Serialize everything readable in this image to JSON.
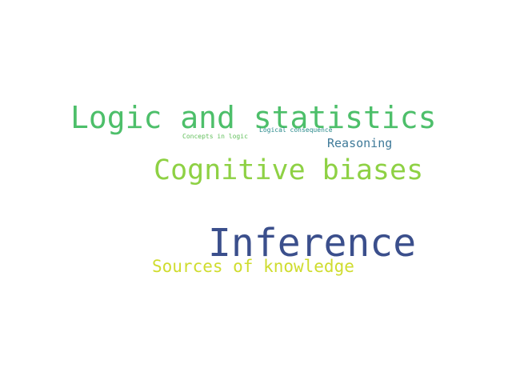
{
  "word_cloud": {
    "words": [
      {
        "key": "logic",
        "text": "Logic and statistics",
        "color": "#4dbf6a"
      },
      {
        "key": "cogbias",
        "text": "Cognitive biases",
        "color": "#8ed144"
      },
      {
        "key": "inference",
        "text": "Inference",
        "color": "#3b4f8c"
      },
      {
        "key": "sources",
        "text": "Sources of knowledge",
        "color": "#cfdc2e"
      },
      {
        "key": "reasoning",
        "text": "Reasoning",
        "color": "#3f7a99"
      },
      {
        "key": "concepts",
        "text": "Concepts in logic",
        "color": "#62c05c"
      },
      {
        "key": "logcons",
        "text": "Logical consequence",
        "color": "#2a8a8c"
      }
    ]
  }
}
